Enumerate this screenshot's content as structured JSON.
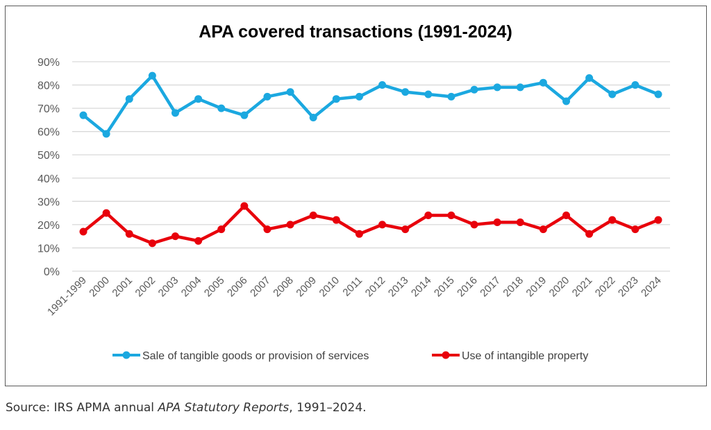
{
  "chart_data": {
    "type": "line",
    "title": "APA covered transactions (1991-2024)",
    "xlabel": "",
    "ylabel": "",
    "ylim": [
      0,
      90
    ],
    "yticks": [
      "0%",
      "10%",
      "20%",
      "30%",
      "40%",
      "50%",
      "60%",
      "70%",
      "80%",
      "90%"
    ],
    "ytick_values": [
      0,
      10,
      20,
      30,
      40,
      50,
      60,
      70,
      80,
      90
    ],
    "grid": true,
    "legend_position": "bottom",
    "categories": [
      "1991-1999",
      "2000",
      "2001",
      "2002",
      "2003",
      "2004",
      "2005",
      "2006",
      "2007",
      "2008",
      "2009",
      "2010",
      "2011",
      "2012",
      "2013",
      "2014",
      "2015",
      "2016",
      "2017",
      "2018",
      "2019",
      "2020",
      "2021",
      "2022",
      "2023",
      "2024"
    ],
    "series": [
      {
        "name": "Sale of tangible goods or provision of services",
        "color": "#1BA8E0",
        "values": [
          67,
          59,
          74,
          84,
          68,
          74,
          70,
          67,
          75,
          77,
          66,
          74,
          75,
          80,
          77,
          76,
          75,
          78,
          79,
          79,
          81,
          73,
          83,
          76,
          80,
          76
        ]
      },
      {
        "name": "Use of intangible property",
        "color": "#E8000B",
        "values": [
          17,
          25,
          16,
          12,
          15,
          13,
          18,
          28,
          18,
          20,
          24,
          22,
          16,
          20,
          18,
          24,
          24,
          20,
          21,
          21,
          18,
          24,
          16,
          22,
          18,
          22
        ]
      }
    ]
  },
  "source": {
    "prefix": "Source: IRS APMA annual ",
    "italic": "APA Statutory Reports",
    "suffix": ", 1991–2024."
  }
}
